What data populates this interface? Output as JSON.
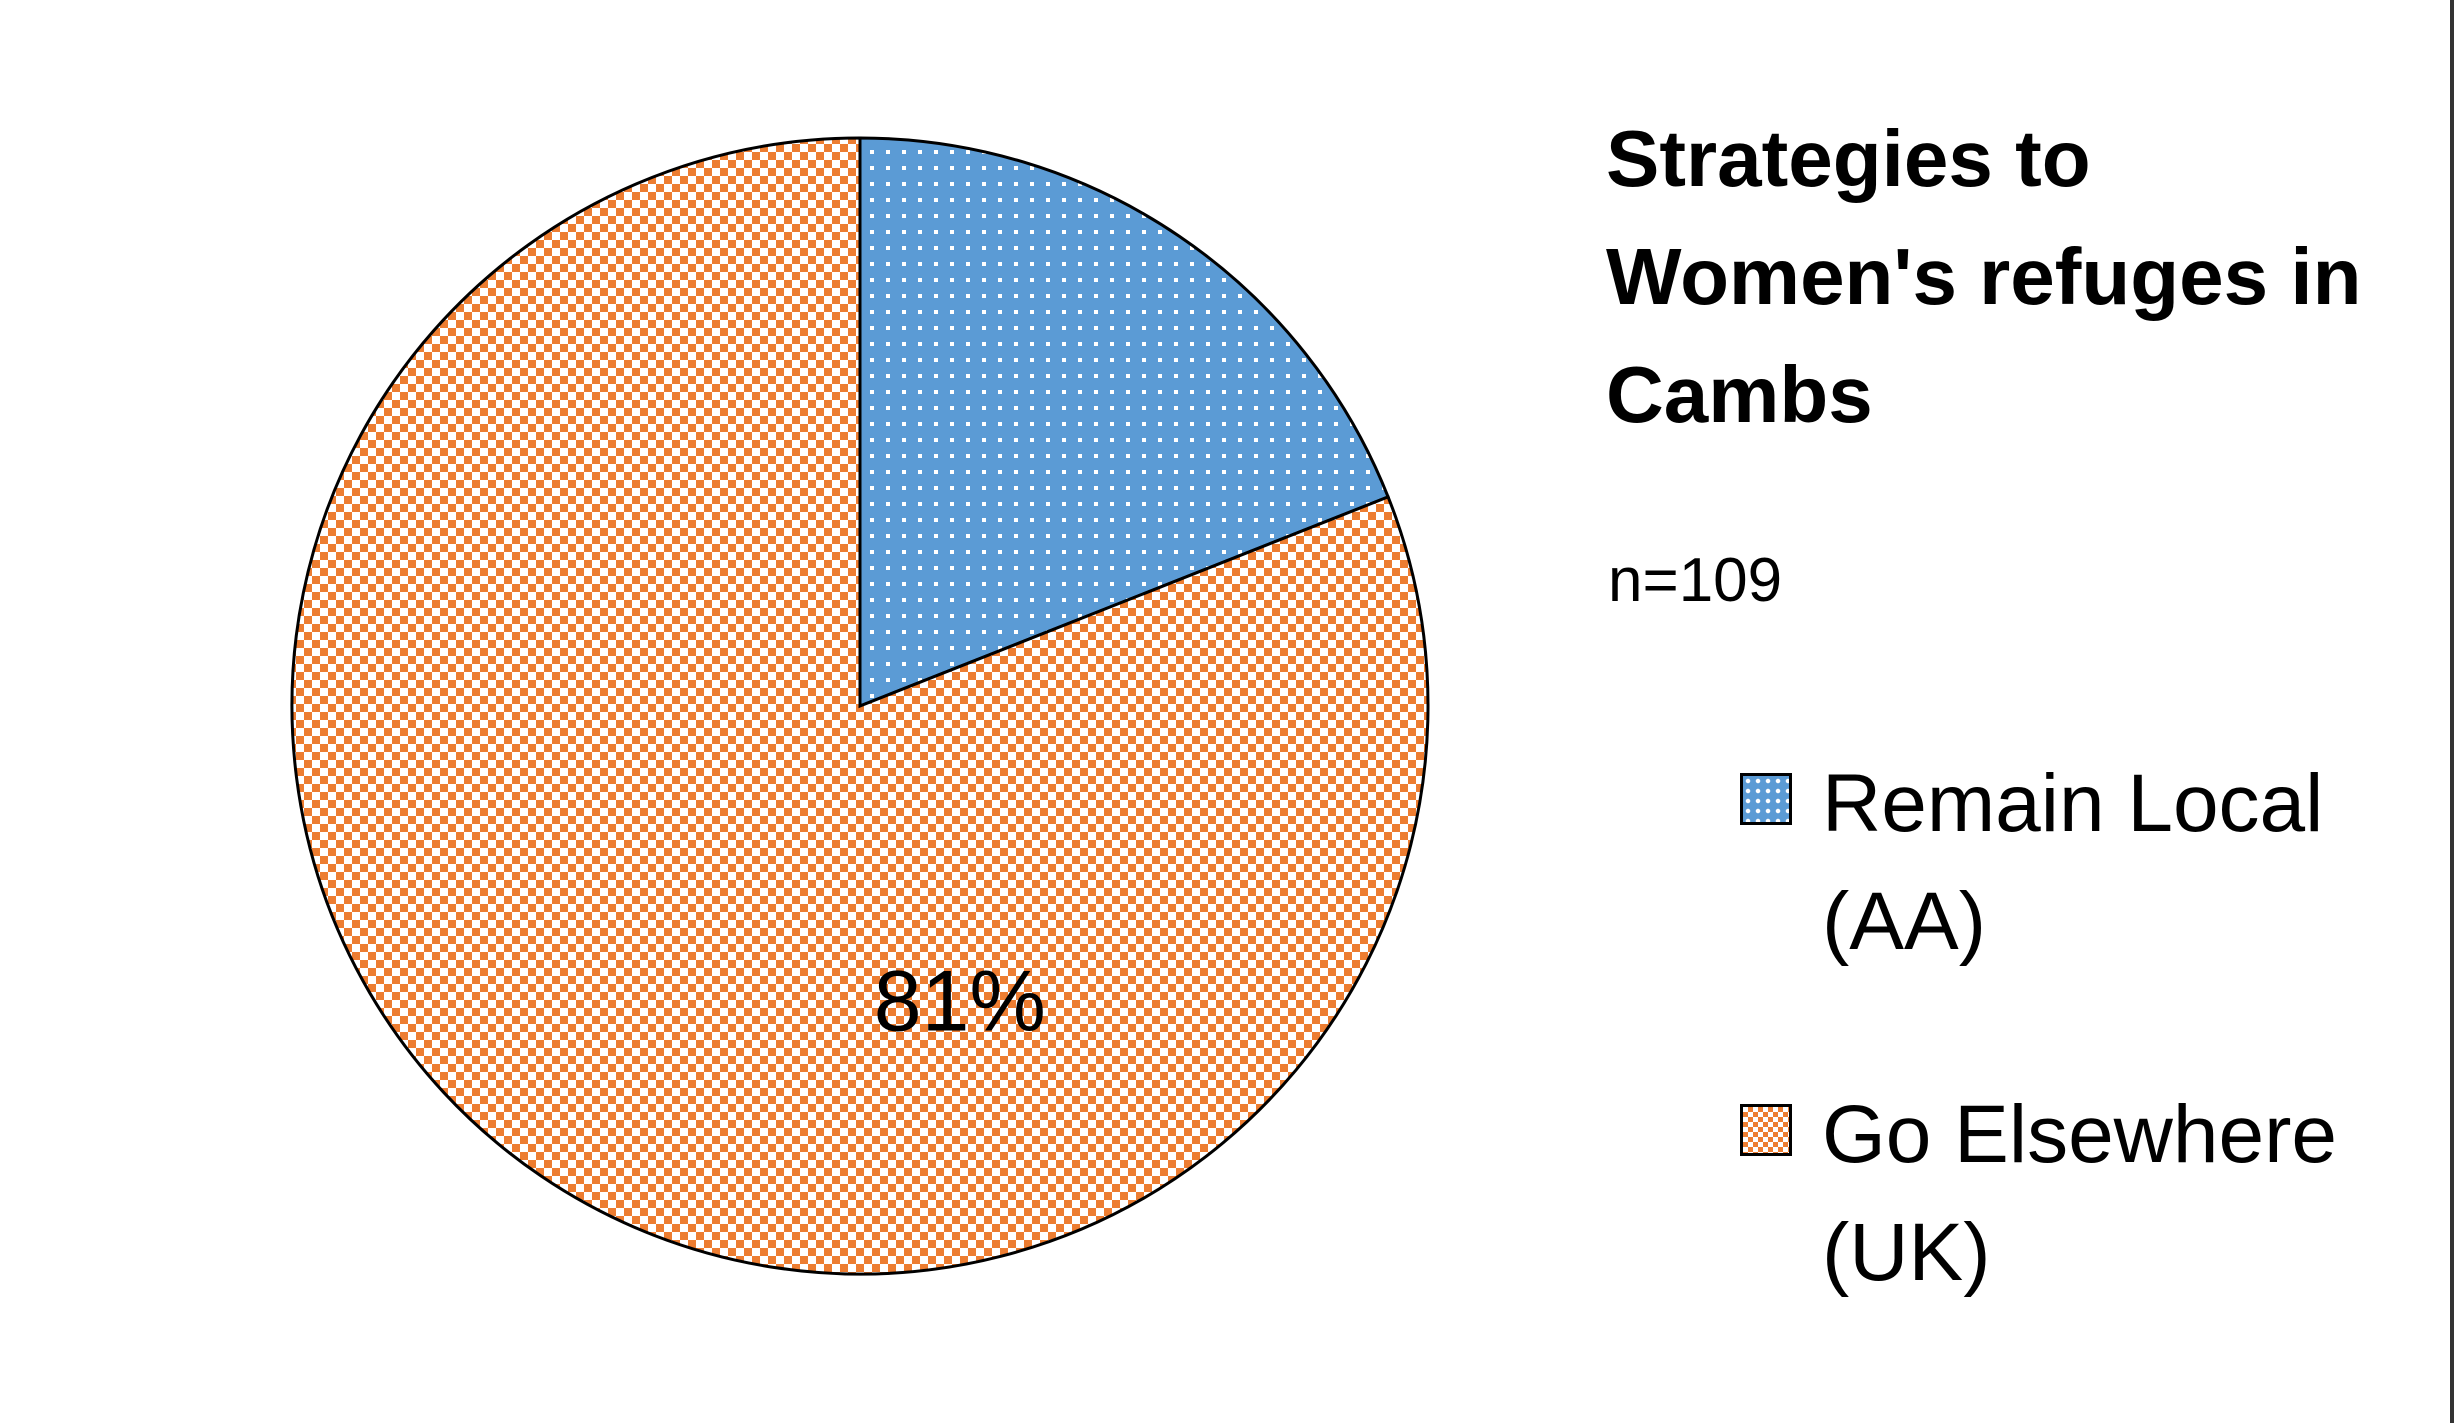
{
  "chart_data": {
    "type": "pie",
    "title": "Strategies to Women's refuges in Cambs",
    "subtitle": "n=109",
    "categories": [
      "Remain Local (AA)",
      "Go Elsewhere (UK)"
    ],
    "values": [
      19,
      81
    ],
    "value_labels": [
      null,
      "81%"
    ],
    "colors": [
      "#5b9bd5",
      "#ed7d31"
    ],
    "legend": "right"
  }
}
